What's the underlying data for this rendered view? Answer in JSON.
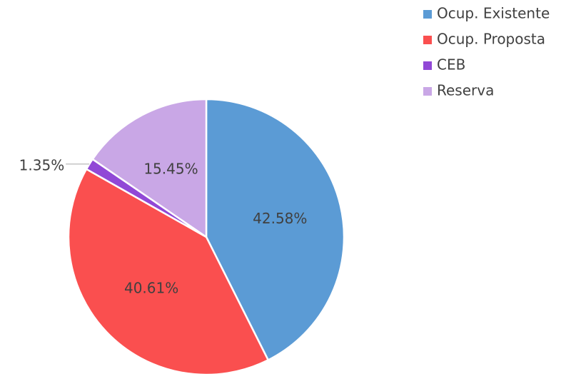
{
  "chart_data": {
    "type": "pie",
    "categories": [
      "Ocup. Existente",
      "Ocup. Proposta",
      "CEB",
      "Reserva"
    ],
    "values": [
      42.58,
      40.61,
      1.35,
      15.45
    ],
    "value_labels": [
      "42.58%",
      "40.61%",
      "1.35%",
      "15.45%"
    ],
    "colors": [
      "#5b9bd5",
      "#fa4f4f",
      "#9148d6",
      "#c9a7e6"
    ],
    "legend": "top-right"
  }
}
